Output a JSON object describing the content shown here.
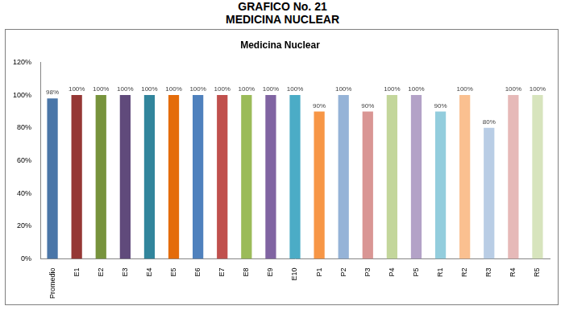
{
  "header": {
    "title": "GRAFICO No. 21",
    "subtitle": "MEDICINA NUCLEAR"
  },
  "chart_data": {
    "type": "bar",
    "title": "Medicina Nuclear",
    "categories": [
      "Promedio",
      "E1",
      "E2",
      "E3",
      "E4",
      "E5",
      "E6",
      "E7",
      "E8",
      "E9",
      "E10",
      "P1",
      "P2",
      "P3",
      "P4",
      "P5",
      "R1",
      "R2",
      "R3",
      "R4",
      "R5"
    ],
    "values": [
      98,
      100,
      100,
      100,
      100,
      100,
      100,
      100,
      100,
      100,
      100,
      90,
      100,
      90,
      100,
      100,
      90,
      100,
      80,
      100,
      100
    ],
    "value_labels": [
      "98%",
      "100%",
      "100%",
      "100%",
      "100%",
      "100%",
      "100%",
      "100%",
      "100%",
      "100%",
      "100%",
      "90%",
      "100%",
      "90%",
      "100%",
      "100%",
      "90%",
      "100%",
      "80%",
      "100%",
      "100%"
    ],
    "colors": [
      "#4a76a8",
      "#953735",
      "#77933c",
      "#604a7b",
      "#31859c",
      "#e46c0a",
      "#4f81bd",
      "#c0504d",
      "#9bbb59",
      "#8064a2",
      "#4bacc6",
      "#f79646",
      "#95b3d7",
      "#d99694",
      "#c3d69b",
      "#b3a2c7",
      "#93cddd",
      "#fac090",
      "#b9cde5",
      "#e6b9b8",
      "#d7e4bd"
    ],
    "ylim": [
      0,
      120
    ],
    "yticks": [
      {
        "value": 0,
        "label": "0%"
      },
      {
        "value": 20,
        "label": "20%"
      },
      {
        "value": 40,
        "label": "40%"
      },
      {
        "value": 60,
        "label": "60%"
      },
      {
        "value": 80,
        "label": "80%"
      },
      {
        "value": 100,
        "label": "100%"
      },
      {
        "value": 120,
        "label": "120%"
      }
    ],
    "grid": false,
    "data_labels": true
  }
}
